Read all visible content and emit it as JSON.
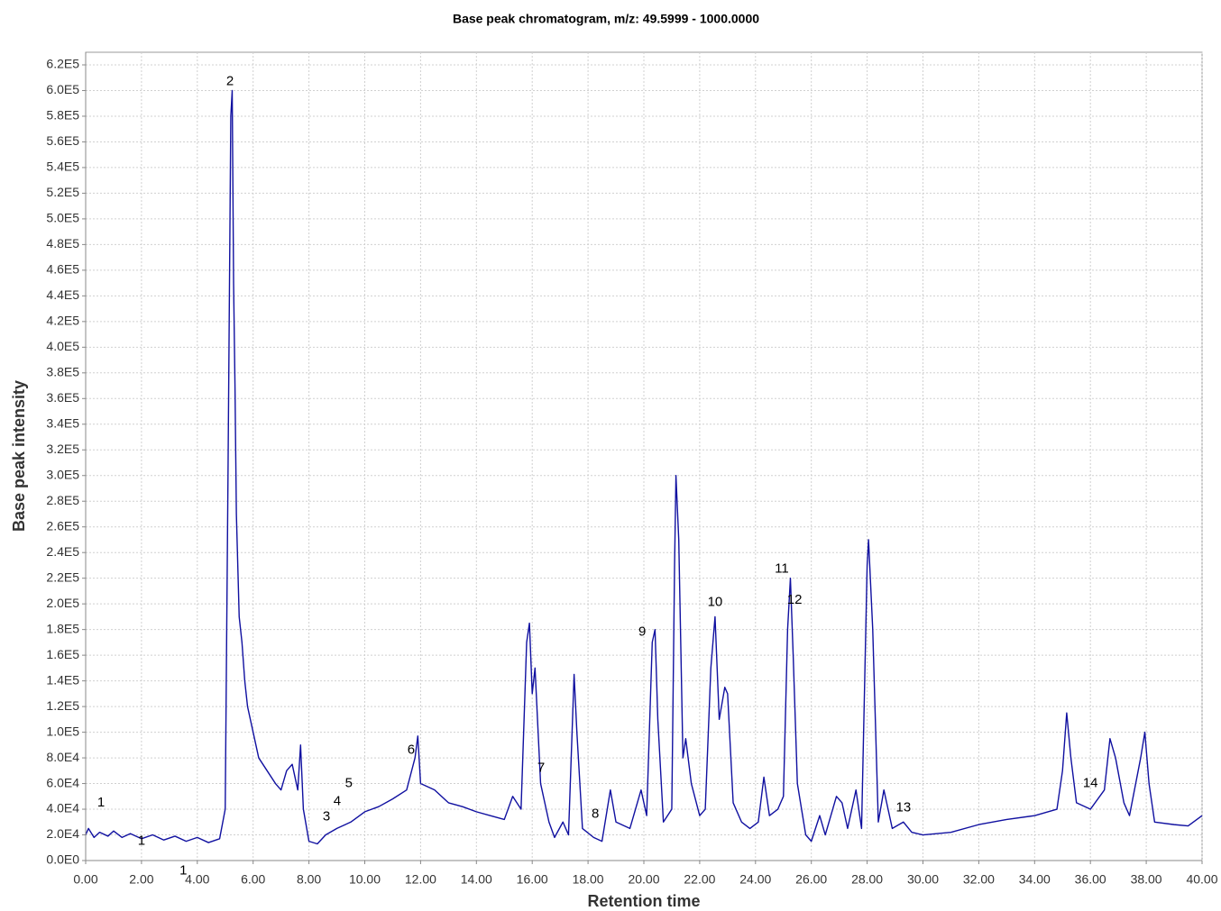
{
  "chart_data": {
    "type": "line",
    "title": "Base peak chromatogram, m/z: 49.5999 - 1000.0000",
    "x_label": "Retention time",
    "y_label": "Base peak intensity",
    "color": "#1010a0",
    "grid": true,
    "xlim": [
      0,
      40
    ],
    "ylim": [
      0,
      620000
    ],
    "xticks": [
      {
        "value": 0,
        "label": "0.00"
      },
      {
        "value": 2,
        "label": "2.00"
      },
      {
        "value": 4,
        "label": "4.00"
      },
      {
        "value": 6,
        "label": "6.00"
      },
      {
        "value": 8,
        "label": "8.00"
      },
      {
        "value": 10,
        "label": "10.00"
      },
      {
        "value": 12,
        "label": "12.00"
      },
      {
        "value": 14,
        "label": "14.00"
      },
      {
        "value": 16,
        "label": "16.00"
      },
      {
        "value": 18,
        "label": "18.00"
      },
      {
        "value": 20,
        "label": "20.00"
      },
      {
        "value": 22,
        "label": "22.00"
      },
      {
        "value": 24,
        "label": "24.00"
      },
      {
        "value": 26,
        "label": "26.00"
      },
      {
        "value": 28,
        "label": "28.00"
      },
      {
        "value": 30,
        "label": "30.00"
      },
      {
        "value": 32,
        "label": "32.00"
      },
      {
        "value": 34,
        "label": "34.00"
      },
      {
        "value": 36,
        "label": "36.00"
      },
      {
        "value": 38,
        "label": "38.00"
      },
      {
        "value": 40,
        "label": "40.00"
      }
    ],
    "yticks": [
      {
        "value": 0,
        "label": "0.0E0"
      },
      {
        "value": 20000,
        "label": "2.0E4"
      },
      {
        "value": 40000,
        "label": "4.0E4"
      },
      {
        "value": 60000,
        "label": "6.0E4"
      },
      {
        "value": 80000,
        "label": "8.0E4"
      },
      {
        "value": 100000,
        "label": "1.0E5"
      },
      {
        "value": 120000,
        "label": "1.2E5"
      },
      {
        "value": 140000,
        "label": "1.4E5"
      },
      {
        "value": 160000,
        "label": "1.6E5"
      },
      {
        "value": 180000,
        "label": "1.8E5"
      },
      {
        "value": 200000,
        "label": "2.0E5"
      },
      {
        "value": 220000,
        "label": "2.2E5"
      },
      {
        "value": 240000,
        "label": "2.4E5"
      },
      {
        "value": 260000,
        "label": "2.6E5"
      },
      {
        "value": 280000,
        "label": "2.8E5"
      },
      {
        "value": 300000,
        "label": "3.0E5"
      },
      {
        "value": 320000,
        "label": "3.2E5"
      },
      {
        "value": 340000,
        "label": "3.4E5"
      },
      {
        "value": 360000,
        "label": "3.6E5"
      },
      {
        "value": 380000,
        "label": "3.8E5"
      },
      {
        "value": 400000,
        "label": "4.0E5"
      },
      {
        "value": 420000,
        "label": "4.2E5"
      },
      {
        "value": 440000,
        "label": "4.4E5"
      },
      {
        "value": 460000,
        "label": "4.6E5"
      },
      {
        "value": 480000,
        "label": "4.8E5"
      },
      {
        "value": 500000,
        "label": "5.0E5"
      },
      {
        "value": 520000,
        "label": "5.2E5"
      },
      {
        "value": 540000,
        "label": "5.4E5"
      },
      {
        "value": 560000,
        "label": "5.6E5"
      },
      {
        "value": 580000,
        "label": "5.8E5"
      },
      {
        "value": 600000,
        "label": "6.0E5"
      },
      {
        "value": 620000,
        "label": "6.2E5"
      }
    ],
    "x": [
      0,
      0.1,
      0.3,
      0.5,
      0.8,
      1.0,
      1.3,
      1.6,
      2.0,
      2.4,
      2.8,
      3.2,
      3.6,
      4.0,
      4.4,
      4.8,
      5.0,
      5.1,
      5.2,
      5.25,
      5.3,
      5.35,
      5.4,
      5.5,
      5.6,
      5.7,
      5.8,
      6.0,
      6.2,
      6.5,
      6.8,
      7.0,
      7.2,
      7.4,
      7.6,
      7.7,
      7.8,
      8.0,
      8.3,
      8.6,
      9.0,
      9.5,
      10.0,
      10.5,
      11.0,
      11.5,
      11.8,
      11.9,
      12.0,
      12.5,
      13.0,
      13.5,
      14.0,
      14.5,
      15.0,
      15.3,
      15.6,
      15.8,
      15.9,
      16.0,
      16.1,
      16.3,
      16.6,
      16.8,
      17.1,
      17.3,
      17.5,
      17.6,
      17.8,
      18.2,
      18.5,
      18.8,
      19.0,
      19.5,
      19.9,
      20.1,
      20.3,
      20.4,
      20.5,
      20.7,
      21.0,
      21.1,
      21.15,
      21.25,
      21.4,
      21.5,
      21.7,
      22.0,
      22.2,
      22.4,
      22.55,
      22.7,
      22.9,
      23.0,
      23.2,
      23.5,
      23.8,
      24.1,
      24.3,
      24.5,
      24.8,
      25.0,
      25.15,
      25.25,
      25.35,
      25.5,
      25.8,
      26.0,
      26.3,
      26.5,
      26.9,
      27.1,
      27.3,
      27.6,
      27.8,
      28.0,
      28.05,
      28.2,
      28.4,
      28.6,
      28.9,
      29.3,
      29.6,
      30.0,
      31.0,
      32.0,
      33.0,
      34.0,
      34.8,
      35.0,
      35.15,
      35.3,
      35.5,
      36.0,
      36.5,
      36.7,
      36.9,
      37.2,
      37.4,
      37.8,
      37.95,
      38.1,
      38.3,
      39.0,
      39.5,
      40.0
    ],
    "values": [
      20000,
      25000,
      18000,
      22000,
      19000,
      23000,
      18000,
      21000,
      17000,
      20000,
      16000,
      19000,
      15000,
      18000,
      14000,
      17000,
      40000,
      300000,
      580000,
      600000,
      450000,
      370000,
      270000,
      190000,
      170000,
      140000,
      120000,
      100000,
      80000,
      70000,
      60000,
      55000,
      70000,
      75000,
      55000,
      90000,
      40000,
      15000,
      13000,
      20000,
      25000,
      30000,
      38000,
      42000,
      48000,
      55000,
      80000,
      97000,
      60000,
      55000,
      45000,
      42000,
      38000,
      35000,
      32000,
      50000,
      40000,
      170000,
      185000,
      130000,
      150000,
      60000,
      30000,
      18000,
      30000,
      20000,
      145000,
      100000,
      25000,
      18000,
      15000,
      55000,
      30000,
      25000,
      55000,
      35000,
      170000,
      180000,
      110000,
      30000,
      40000,
      230000,
      300000,
      250000,
      80000,
      95000,
      60000,
      35000,
      40000,
      150000,
      190000,
      110000,
      135000,
      130000,
      45000,
      30000,
      25000,
      30000,
      65000,
      35000,
      40000,
      50000,
      180000,
      220000,
      160000,
      60000,
      20000,
      15000,
      35000,
      20000,
      50000,
      45000,
      25000,
      55000,
      25000,
      230000,
      250000,
      180000,
      30000,
      55000,
      25000,
      30000,
      22000,
      20000,
      22000,
      28000,
      32000,
      35000,
      40000,
      70000,
      115000,
      80000,
      45000,
      40000,
      55000,
      95000,
      80000,
      45000,
      35000,
      80000,
      100000,
      60000,
      30000,
      28000,
      27000,
      35000
    ],
    "annotations": [
      {
        "text": "1",
        "x": 0.55,
        "y": 45000
      },
      {
        "text": "1",
        "x": 2.0,
        "y": 15000
      },
      {
        "text": "1",
        "x": 3.5,
        "y": -8000
      },
      {
        "text": "2",
        "x": 5.17,
        "y": 607000
      },
      {
        "text": "3",
        "x": 8.63,
        "y": 34000
      },
      {
        "text": "4",
        "x": 9.01,
        "y": 46000
      },
      {
        "text": "5",
        "x": 9.43,
        "y": 60000
      },
      {
        "text": "6",
        "x": 11.66,
        "y": 86000
      },
      {
        "text": "7",
        "x": 16.32,
        "y": 72000
      },
      {
        "text": "8",
        "x": 18.26,
        "y": 36000
      },
      {
        "text": "9",
        "x": 19.94,
        "y": 178000
      },
      {
        "text": "10",
        "x": 22.55,
        "y": 201000
      },
      {
        "text": "11",
        "x": 24.94,
        "y": 227000
      },
      {
        "text": "12",
        "x": 25.4,
        "y": 203000
      },
      {
        "text": "13",
        "x": 29.3,
        "y": 41000
      },
      {
        "text": "14",
        "x": 36.0,
        "y": 60000
      }
    ]
  }
}
